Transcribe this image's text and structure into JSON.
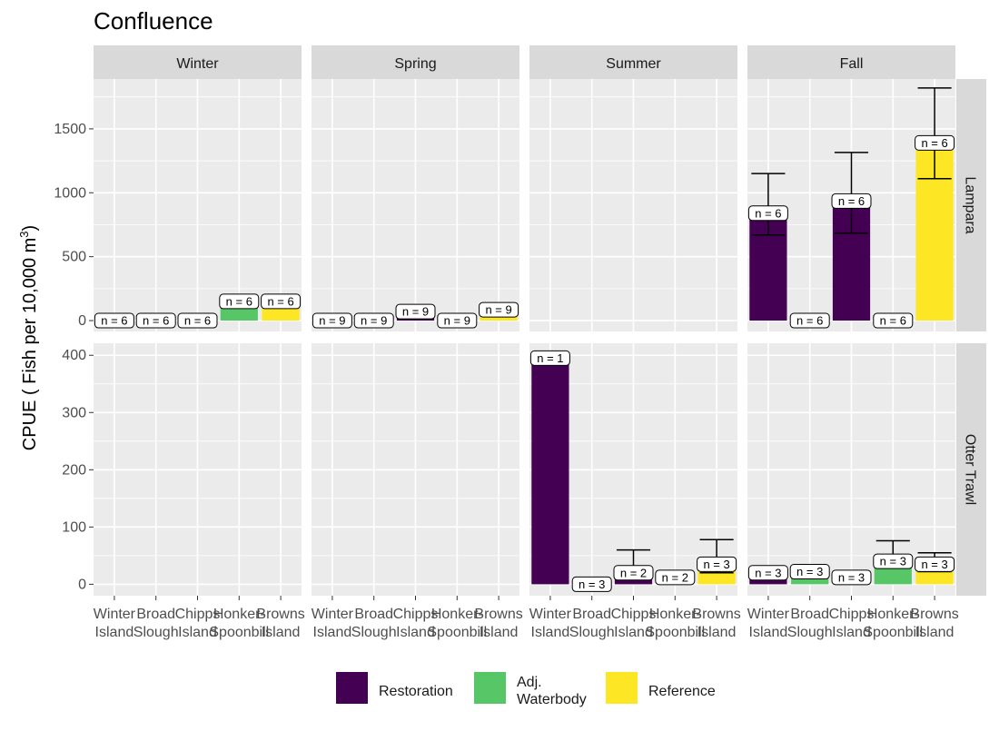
{
  "title": "Confluence",
  "ylabel_main": "CPUE ( Fish per 10,000 m",
  "ylabel_sup": "3",
  "ylabel_end": ")",
  "colors": {
    "Restoration": "#440154",
    "Adj. Waterbody": "#56C667",
    "Reference": "#FDE725",
    "panel_bg": "#EBEBEB",
    "strip_bg": "#D9D9D9"
  },
  "legend": [
    {
      "key": "Restoration",
      "lines": [
        "Restoration"
      ]
    },
    {
      "key": "Adj. Waterbody",
      "lines": [
        "Adj.",
        "Waterbody"
      ]
    },
    {
      "key": "Reference",
      "lines": [
        "Reference"
      ]
    }
  ],
  "chart_data": {
    "type": "bar",
    "facet_cols": [
      "Winter",
      "Spring",
      "Summer",
      "Fall"
    ],
    "facet_rows": [
      "Lampara",
      "Otter Trawl"
    ],
    "categories": [
      "Winter Island",
      "Broad Slough",
      "Chipps Island",
      "Honker-Spoonbill",
      "Browns Island"
    ],
    "category_lines": [
      [
        "Winter",
        "Island"
      ],
      [
        "Broad",
        "Slough"
      ],
      [
        "Chipps",
        "Island"
      ],
      [
        "Honker-",
        "Spoonbill"
      ],
      [
        "Browns",
        "Island"
      ]
    ],
    "category_group": [
      "Restoration",
      "Adj. Waterbody",
      "Restoration",
      "Adj. Waterbody",
      "Reference"
    ],
    "rows": [
      {
        "name": "Lampara",
        "ylim": [
          -85,
          1890
        ],
        "yticks": [
          0,
          500,
          1000,
          1500
        ],
        "panels": {
          "Winter": {
            "values": [
              0,
              0,
              0,
              150,
              150
            ],
            "err": [
              null,
              null,
              null,
              null,
              null
            ],
            "n": [
              "n = 6",
              "n = 6",
              "n = 6",
              "n = 6",
              "n = 6"
            ]
          },
          "Spring": {
            "values": [
              0,
              0,
              70,
              0,
              85
            ],
            "err": [
              null,
              null,
              null,
              null,
              null
            ],
            "n": [
              "n = 9",
              "n = 9",
              "n = 9",
              "n = 9",
              "n = 9"
            ]
          },
          "Summer": {
            "values": [
              null,
              null,
              null,
              null,
              null
            ],
            "err": [
              null,
              null,
              null,
              null,
              null
            ],
            "n": [
              null,
              null,
              null,
              null,
              null
            ]
          },
          "Fall": {
            "values": [
              840,
              0,
              935,
              0,
              1390
            ],
            "err": [
              [
                670,
                1150
              ],
              null,
              [
                685,
                1315
              ],
              null,
              [
                1110,
                1820
              ]
            ],
            "n": [
              "n = 6",
              "n = 6",
              "n = 6",
              "n = 6",
              "n = 6"
            ]
          }
        }
      },
      {
        "name": "Otter Trawl",
        "ylim": [
          -20,
          421
        ],
        "yticks": [
          0,
          100,
          200,
          300,
          400
        ],
        "panels": {
          "Winter": {
            "values": [
              null,
              null,
              null,
              null,
              null
            ],
            "err": [
              null,
              null,
              null,
              null,
              null
            ],
            "n": [
              null,
              null,
              null,
              null,
              null
            ]
          },
          "Spring": {
            "values": [
              null,
              null,
              null,
              null,
              null
            ],
            "err": [
              null,
              null,
              null,
              null,
              null
            ],
            "n": [
              null,
              null,
              null,
              null,
              null
            ]
          },
          "Summer": {
            "values": [
              395,
              0,
              20,
              12,
              35
            ],
            "err": [
              null,
              null,
              [
                10,
                60
              ],
              null,
              [
                20,
                78
              ]
            ],
            "n": [
              "n = 1",
              "n = 3",
              "n = 2",
              "n = 2",
              "n = 3"
            ]
          },
          "Fall": {
            "values": [
              20,
              22,
              12,
              40,
              35
            ],
            "err": [
              null,
              null,
              null,
              [
                37,
                76
              ],
              [
                22,
                55
              ]
            ],
            "n": [
              "n = 3",
              "n = 3",
              "n = 3",
              "n = 3",
              "n = 3"
            ]
          }
        }
      }
    ]
  }
}
